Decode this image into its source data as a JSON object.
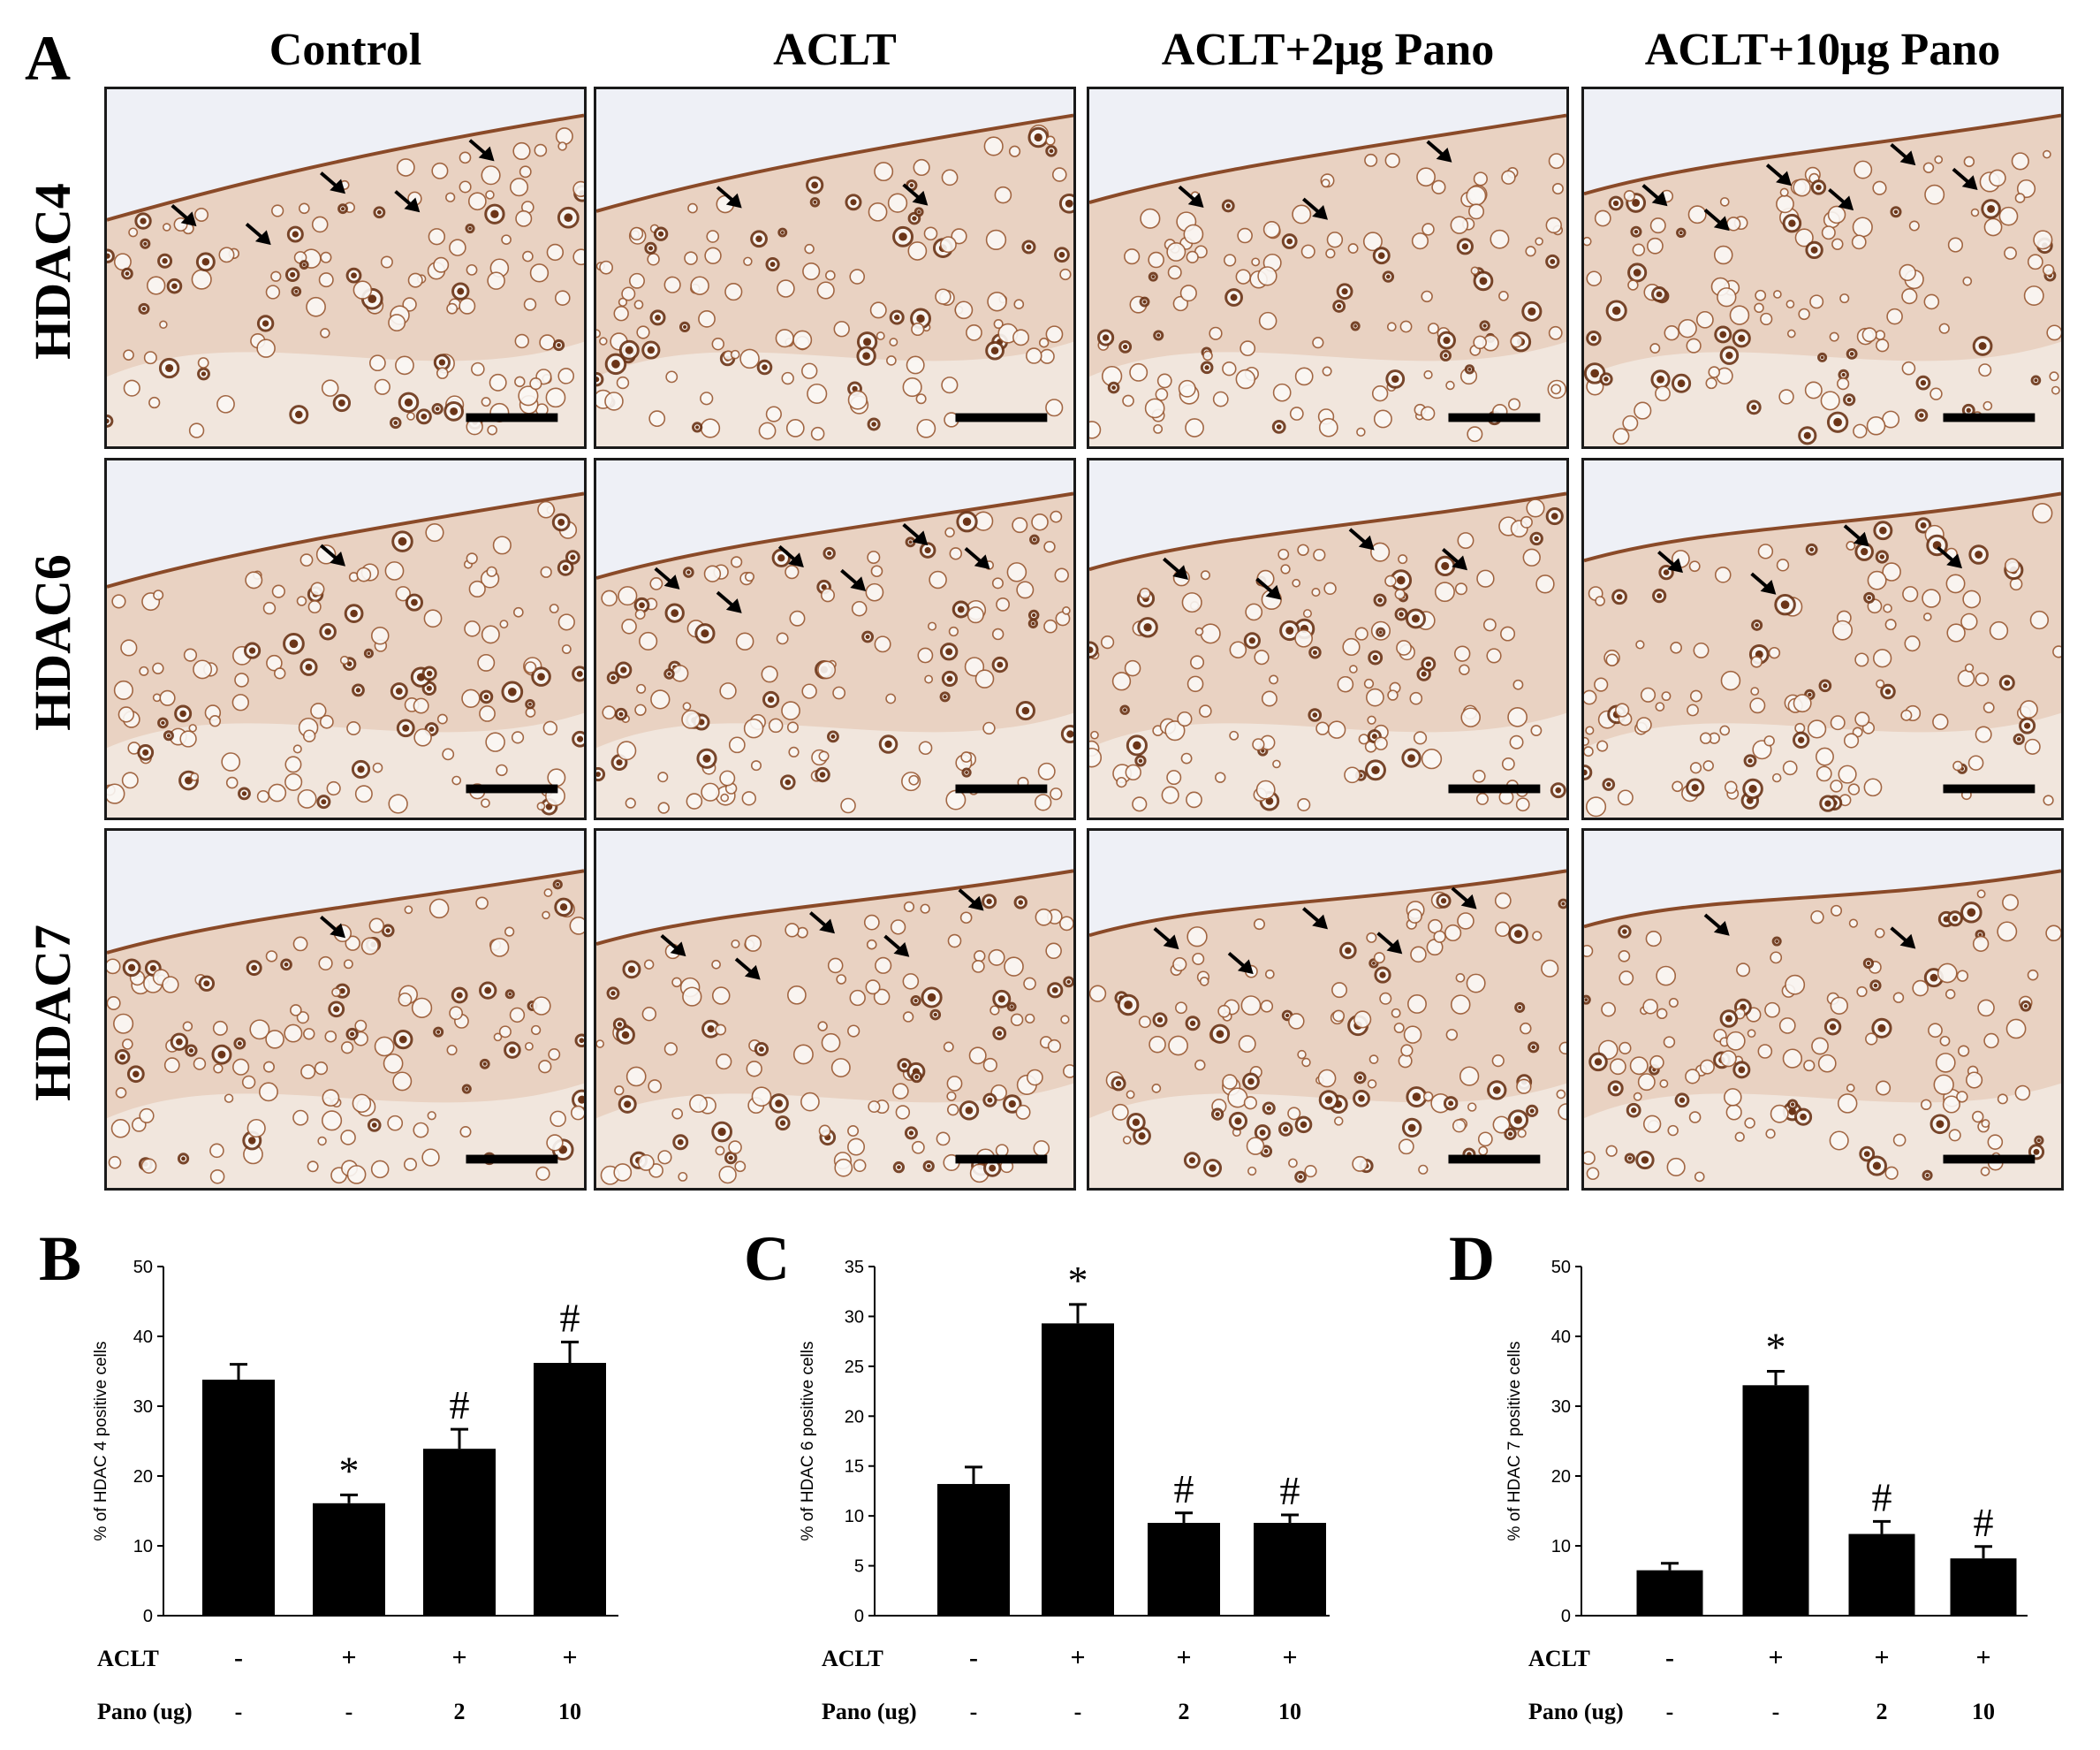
{
  "panel_a": {
    "letter": "A",
    "columns": [
      "Control",
      "ACLT",
      "ACLT+2μg Pano",
      "ACLT+10μg Pano"
    ],
    "rows": [
      "HDAC4",
      "HDAC6",
      "HDAC7"
    ],
    "arrow_counts": [
      [
        5,
        2,
        3,
        6
      ],
      [
        1,
        6,
        4,
        4
      ],
      [
        1,
        5,
        5,
        2
      ]
    ],
    "stain_colors": {
      "background": "#f6f2ee",
      "tissue": "#e9d2c2",
      "cell": "#9a5a34",
      "dark_cell": "#6b3518",
      "slide": "#eef0f6"
    }
  },
  "bottom": {
    "aclt_label": "ACLT",
    "pano_label_b": "Pano (ug)",
    "pano_label_c": "Pano (ug)",
    "pano_label_d": "Pano  (ug)",
    "aclt_values": [
      "-",
      "+",
      "+",
      "+"
    ],
    "pano_values": [
      "-",
      "-",
      "2",
      "10"
    ]
  },
  "chart_data": [
    {
      "panel": "B",
      "type": "bar",
      "ylabel": "% of HDAC 4 positive cells",
      "ylim": [
        0,
        50
      ],
      "yticks": [
        0,
        10,
        20,
        30,
        40,
        50
      ],
      "values": [
        33.8,
        16.1,
        23.9,
        36.2
      ],
      "errors": [
        2.2,
        1.2,
        2.8,
        3.0
      ],
      "annotations": [
        "",
        "*",
        "#",
        "#"
      ]
    },
    {
      "panel": "C",
      "type": "bar",
      "ylabel": "% of HDAC 6 positive cells",
      "ylim": [
        0,
        35
      ],
      "yticks": [
        0,
        5,
        10,
        15,
        20,
        25,
        30,
        35
      ],
      "values": [
        13.2,
        29.3,
        9.3,
        9.3
      ],
      "errors": [
        1.7,
        1.9,
        1.0,
        0.8
      ],
      "annotations": [
        "",
        "*",
        "#",
        "#"
      ]
    },
    {
      "panel": "D",
      "type": "bar",
      "ylabel": "% of HDAC 7 positive cells",
      "ylim": [
        0,
        50
      ],
      "yticks": [
        0,
        10,
        20,
        30,
        40,
        50
      ],
      "values": [
        6.5,
        33.0,
        11.7,
        8.2
      ],
      "errors": [
        1.0,
        2.0,
        1.8,
        1.7
      ],
      "annotations": [
        "",
        "*",
        "#",
        "#"
      ]
    }
  ]
}
